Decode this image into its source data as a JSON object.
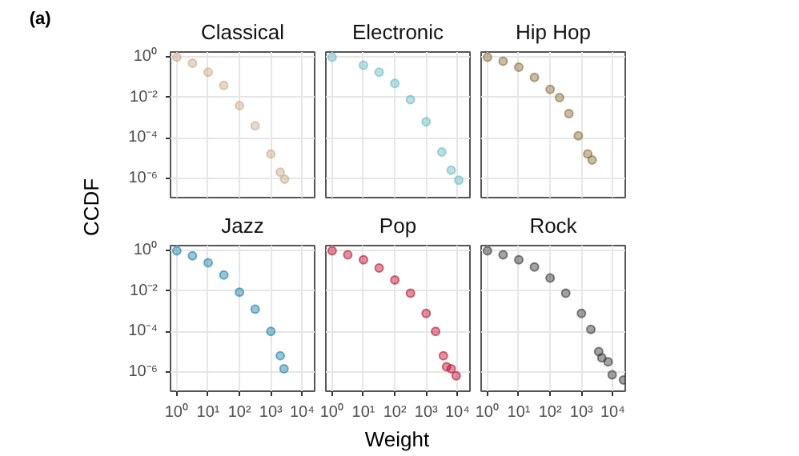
{
  "chart_data": [
    {
      "type": "scatter",
      "title": "Classical",
      "ylabel": "CCDF",
      "annotations": [
        "(a)"
      ],
      "tick_labels": "y",
      "grid": true,
      "marker": "circle",
      "log": "xy",
      "xlim": [
        0.63,
        25000
      ],
      "ylim": [
        1.1e-07,
        1.8
      ],
      "xticks": [
        {
          "value": 1,
          "label": null
        },
        {
          "value": 10,
          "label": null
        },
        {
          "value": 100,
          "label": null
        },
        {
          "value": 1000,
          "label": null
        },
        {
          "value": 10000,
          "label": null
        }
      ],
      "yticks": [
        {
          "value": 1,
          "label": "10⁰"
        },
        {
          "value": 0.01,
          "label": "10⁻²"
        },
        {
          "value": 0.0001,
          "label": "10⁻⁴"
        },
        {
          "value": 1e-06,
          "label": "10⁻⁶"
        }
      ],
      "series": [
        {
          "color": "#c9a98a",
          "x": [
            1,
            3.16,
            10,
            31.6,
            100,
            316,
            1000,
            2000,
            2750
          ],
          "values": [
            1,
            0.5,
            0.178,
            0.0398,
            0.00398,
            0.000398,
            1.58e-05,
            2e-06,
            8.9e-07
          ]
        }
      ]
    },
    {
      "type": "scatter",
      "title": "Electronic",
      "tick_labels": false,
      "grid": true,
      "marker": "circle",
      "log": "xy",
      "xlim": [
        0.63,
        25000
      ],
      "ylim": [
        1.1e-07,
        1.8
      ],
      "xticks": [
        {
          "value": 1,
          "label": null
        },
        {
          "value": 10,
          "label": null
        },
        {
          "value": 100,
          "label": null
        },
        {
          "value": 1000,
          "label": null
        },
        {
          "value": 10000,
          "label": null
        }
      ],
      "yticks": [
        {
          "value": 1,
          "label": null
        },
        {
          "value": 0.01,
          "label": null
        },
        {
          "value": 0.0001,
          "label": null
        },
        {
          "value": 1e-06,
          "label": null
        }
      ],
      "series": [
        {
          "color": "#6bb8c0",
          "x": [
            1,
            10,
            31.6,
            100,
            316,
            1000,
            3160,
            6310,
            11000
          ],
          "values": [
            1,
            0.398,
            0.178,
            0.0501,
            0.00794,
            0.000631,
            2e-05,
            2.51e-06,
            7.94e-07
          ]
        }
      ]
    },
    {
      "type": "scatter",
      "title": "Hip Hop",
      "tick_labels": false,
      "grid": true,
      "marker": "circle",
      "log": "xy",
      "xlim": [
        0.63,
        25000
      ],
      "ylim": [
        1.1e-07,
        1.8
      ],
      "xticks": [
        {
          "value": 1,
          "label": null
        },
        {
          "value": 10,
          "label": null
        },
        {
          "value": 100,
          "label": null
        },
        {
          "value": 1000,
          "label": null
        },
        {
          "value": 10000,
          "label": null
        }
      ],
      "yticks": [
        {
          "value": 1,
          "label": null
        },
        {
          "value": 0.01,
          "label": null
        },
        {
          "value": 0.0001,
          "label": null
        },
        {
          "value": 1e-06,
          "label": null
        }
      ],
      "series": [
        {
          "color": "#8b6b3a",
          "x": [
            1,
            3.16,
            10,
            31.6,
            100,
            200,
            398,
            794,
            1585,
            2190
          ],
          "values": [
            1,
            0.631,
            0.316,
            0.1,
            0.0251,
            0.01,
            0.00158,
            0.000126,
            1.58e-05,
            7.94e-06
          ]
        }
      ]
    },
    {
      "type": "scatter",
      "title": "Jazz",
      "grid": true,
      "marker": "circle",
      "log": "xy",
      "xlim": [
        0.63,
        25000
      ],
      "ylim": [
        1.1e-07,
        1.8
      ],
      "xticks": [
        {
          "value": 1,
          "label": "10⁰"
        },
        {
          "value": 10,
          "label": "10¹"
        },
        {
          "value": 100,
          "label": "10²"
        },
        {
          "value": 1000,
          "label": "10³"
        },
        {
          "value": 10000,
          "label": "10⁴"
        }
      ],
      "yticks": [
        {
          "value": 1,
          "label": "10⁰"
        },
        {
          "value": 0.01,
          "label": "10⁻²"
        },
        {
          "value": 0.0001,
          "label": "10⁻⁴"
        },
        {
          "value": 1e-06,
          "label": "10⁻⁶"
        }
      ],
      "series": [
        {
          "color": "#1a7fa8",
          "x": [
            1,
            3.16,
            10,
            31.6,
            100,
            316,
            1000,
            2000,
            2630
          ],
          "values": [
            1,
            0.562,
            0.251,
            0.0631,
            0.00891,
            0.00126,
            0.0001,
            6.31e-06,
            1.41e-06
          ]
        }
      ]
    },
    {
      "type": "scatter",
      "title": "Pop",
      "xlabel": "Weight",
      "tick_labels": "x",
      "grid": true,
      "marker": "circle",
      "log": "xy",
      "xlim": [
        0.63,
        25000
      ],
      "ylim": [
        1.1e-07,
        1.8
      ],
      "xticks": [
        {
          "value": 1,
          "label": "10⁰"
        },
        {
          "value": 10,
          "label": "10¹"
        },
        {
          "value": 100,
          "label": "10²"
        },
        {
          "value": 1000,
          "label": "10³"
        },
        {
          "value": 10000,
          "label": "10⁴"
        }
      ],
      "yticks": [
        {
          "value": 1,
          "label": null
        },
        {
          "value": 0.01,
          "label": null
        },
        {
          "value": 0.0001,
          "label": null
        },
        {
          "value": 1e-06,
          "label": null
        }
      ],
      "series": [
        {
          "color": "#b8102e",
          "x": [
            1,
            3.16,
            10,
            31.6,
            100,
            316,
            1000,
            2000,
            3550,
            4470,
            6310,
            9120
          ],
          "values": [
            1,
            0.631,
            0.355,
            0.141,
            0.0355,
            0.00794,
            0.000794,
            0.0001,
            6.31e-06,
            1.78e-06,
            1.41e-06,
            6.31e-07
          ]
        }
      ]
    },
    {
      "type": "scatter",
      "title": "Rock",
      "tick_labels": "x",
      "grid": true,
      "marker": "circle",
      "log": "xy",
      "xlim": [
        0.63,
        25000
      ],
      "ylim": [
        1.1e-07,
        1.8
      ],
      "xticks": [
        {
          "value": 1,
          "label": "10⁰"
        },
        {
          "value": 10,
          "label": "10¹"
        },
        {
          "value": 100,
          "label": "10²"
        },
        {
          "value": 1000,
          "label": "10³"
        },
        {
          "value": 10000,
          "label": "10⁴"
        }
      ],
      "yticks": [
        {
          "value": 1,
          "label": null
        },
        {
          "value": 0.01,
          "label": null
        },
        {
          "value": 0.0001,
          "label": null
        },
        {
          "value": 1e-06,
          "label": null
        }
      ],
      "series": [
        {
          "color": "#333333",
          "x": [
            1,
            3.16,
            10,
            31.6,
            100,
            316,
            1000,
            2000,
            3550,
            4470,
            7080,
            9550,
            21900
          ],
          "values": [
            1,
            0.631,
            0.355,
            0.158,
            0.0447,
            0.00794,
            0.000794,
            0.000126,
            1e-05,
            5.01e-06,
            3.16e-06,
            7.08e-07,
            3.98e-07
          ]
        }
      ]
    }
  ]
}
